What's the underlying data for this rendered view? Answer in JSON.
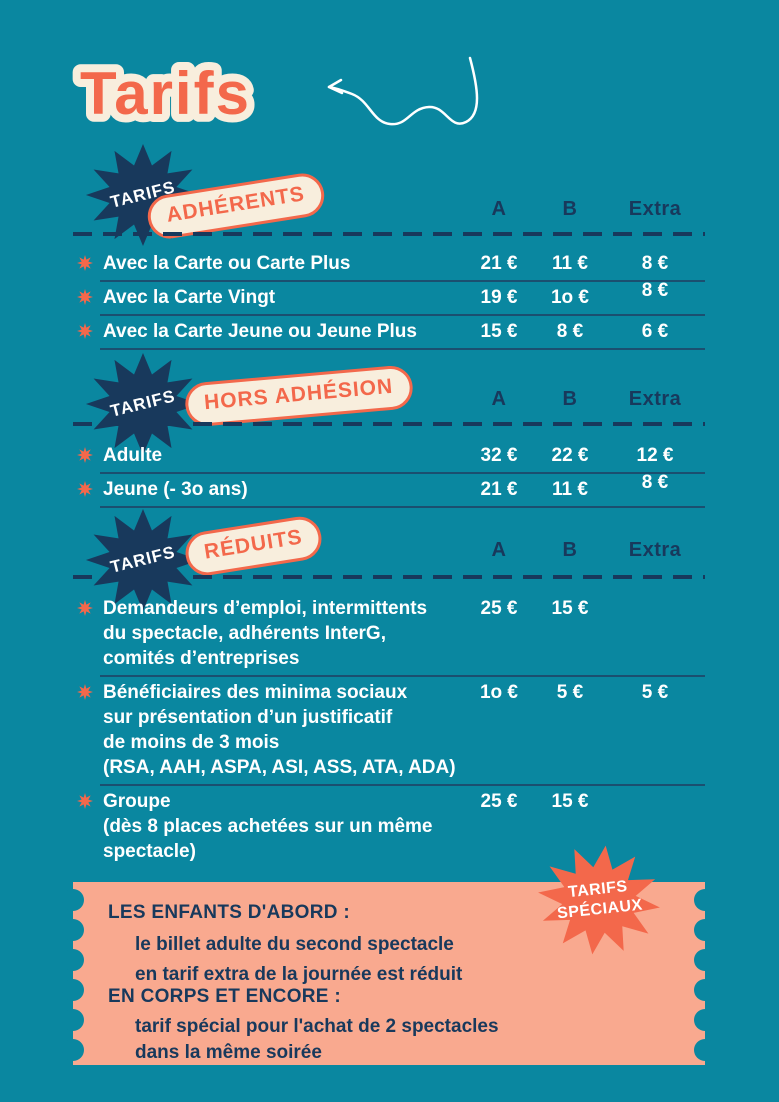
{
  "page": {
    "title": "Tarifs"
  },
  "colors": {
    "background": "#0a87a0",
    "navy": "#18395c",
    "coral": "#f3684b",
    "cream": "#f8eedd",
    "salmon": "#f9a98f",
    "white": "#ffffff"
  },
  "columns": {
    "a": "A",
    "b": "B",
    "extra": "Extra"
  },
  "sections": [
    {
      "burst_label": "TARIFS",
      "badge_label": "ADHÉRENTS",
      "rows": [
        {
          "label_lines": [
            "Avec la Carte ou Carte Plus"
          ],
          "prices": {
            "a": "21 €",
            "b": "11 €",
            "extra": "8 €"
          }
        },
        {
          "label_lines": [
            "Avec la Carte Vingt"
          ],
          "prices": {
            "a": "19 €",
            "b": "1o €",
            "extra": "8 €"
          }
        },
        {
          "label_lines": [
            "Avec la Carte Jeune ou Jeune Plus"
          ],
          "prices": {
            "a": "15 €",
            "b": "8 €",
            "extra": "6 €"
          }
        }
      ]
    },
    {
      "burst_label": "TARIFS",
      "badge_label": "HORS ADHÉSION",
      "rows": [
        {
          "label_lines": [
            "Adulte"
          ],
          "prices": {
            "a": "32 €",
            "b": "22 €",
            "extra": "12 €"
          }
        },
        {
          "label_lines": [
            "Jeune (- 3o ans)"
          ],
          "prices": {
            "a": "21 €",
            "b": "11 €",
            "extra": "8 €"
          }
        }
      ]
    },
    {
      "burst_label": "TARIFS",
      "badge_label": "RÉDUITS",
      "rows": [
        {
          "label_lines": [
            "Demandeurs d’emploi, intermittents",
            "du spectacle, adhérents InterG,",
            "comités d’entreprises"
          ],
          "prices": {
            "a": "25 €",
            "b": "15 €",
            "extra": ""
          }
        },
        {
          "label_lines": [
            "Bénéficiaires des minima sociaux",
            "sur présentation d’un justificatif",
            "de moins de 3 mois",
            "(RSA, AAH, ASPA, ASI, ASS, ATA, ADA)"
          ],
          "prices": {
            "a": "1o €",
            "b": "5 €",
            "extra": "5 €"
          }
        },
        {
          "label_lines": [
            "Groupe",
            "(dès 8 places achetées sur un même",
            "spectacle)"
          ],
          "prices": {
            "a": "25 €",
            "b": "15 €",
            "extra": ""
          }
        }
      ]
    }
  ],
  "special": {
    "burst_lines": [
      "TARIFS",
      "SPÉCIAUX"
    ],
    "items": [
      {
        "title": "LES ENFANTS D'ABORD :",
        "lines": [
          "le billet adulte du second spectacle",
          "en tarif extra de la journée est réduit"
        ]
      },
      {
        "title": "EN CORPS ET ENCORE :",
        "lines": [
          "tarif spécial pour l'achat de 2 spectacles",
          "dans la même soirée"
        ]
      }
    ]
  }
}
